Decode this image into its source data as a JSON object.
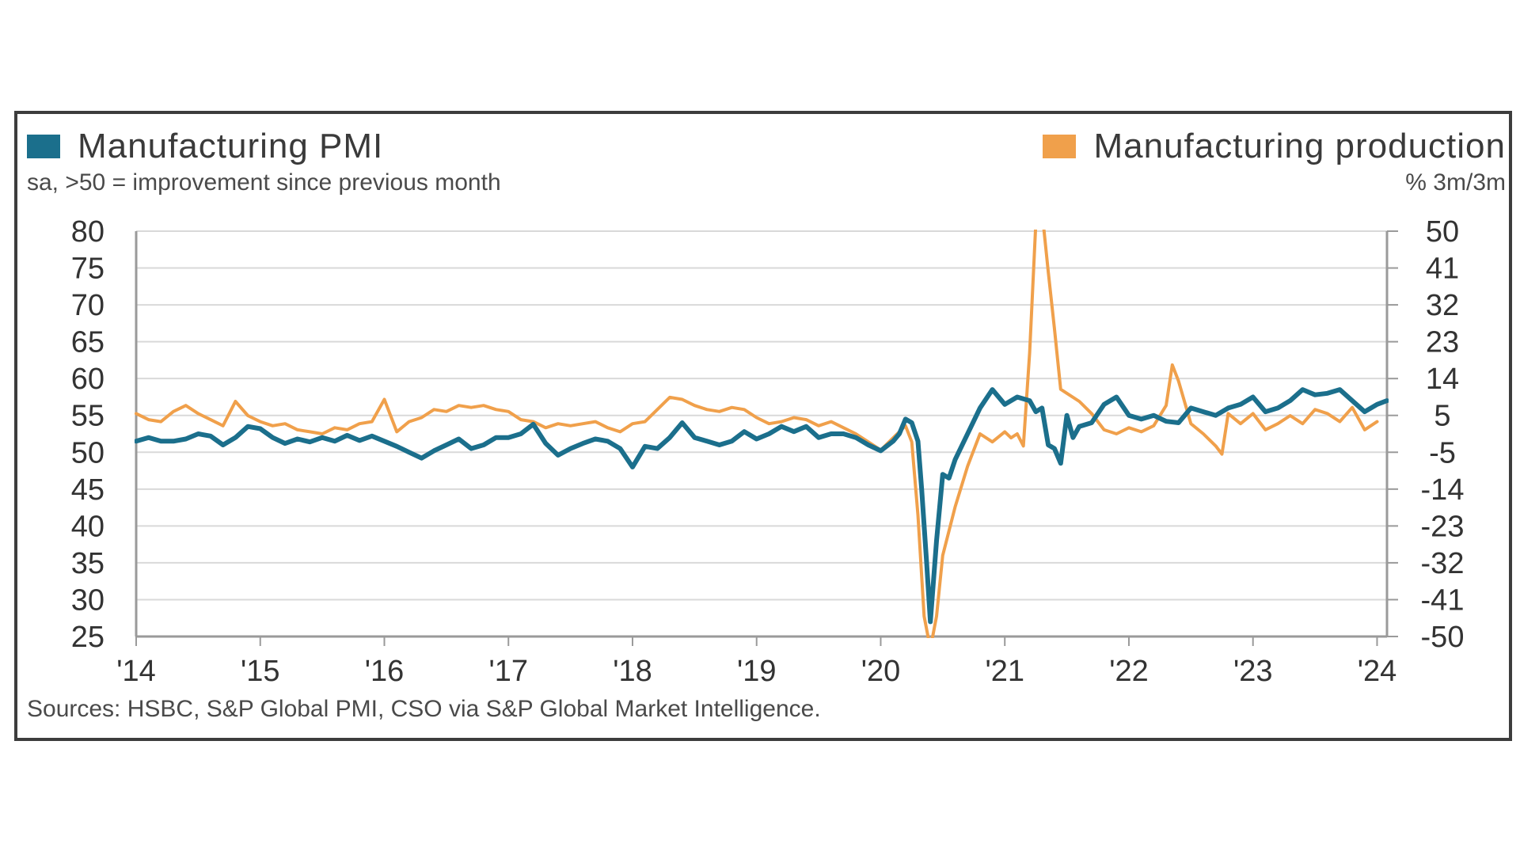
{
  "legend": {
    "left_label": "Manufacturing PMI",
    "right_label": "Manufacturing production",
    "left_color": "#1b6f8c",
    "right_color": "#f0a04b"
  },
  "subtitle_left": "sa, >50 = improvement since previous month",
  "subtitle_right": "% 3m/3m",
  "source": "Sources: HSBC, S&P Global PMI, CSO via S&P Global Market Intelligence.",
  "chart_data": {
    "type": "line",
    "x_tick_labels": [
      "'14",
      "'15",
      "'16",
      "'17",
      "'18",
      "'19",
      "'20",
      "'21",
      "'22",
      "'23",
      "'24"
    ],
    "y_left_ticks": [
      "80",
      "75",
      "70",
      "65",
      "60",
      "55",
      "50",
      "45",
      "40",
      "35",
      "30",
      "25"
    ],
    "y_right_ticks": [
      "50",
      "41",
      "32",
      "23",
      "14",
      "5",
      "-5",
      "-14",
      "-23",
      "-32",
      "-41",
      "-50"
    ],
    "y_left_range": [
      25,
      80
    ],
    "y_right_range": [
      -50,
      50
    ],
    "x_range": [
      2014.0,
      2024.08
    ],
    "grid": true,
    "series": [
      {
        "name": "Manufacturing PMI",
        "axis": "left",
        "color": "#1b6f8c",
        "points": [
          [
            2014.0,
            51.5
          ],
          [
            2014.1,
            52.0
          ],
          [
            2014.2,
            51.5
          ],
          [
            2014.3,
            51.5
          ],
          [
            2014.4,
            51.8
          ],
          [
            2014.5,
            52.5
          ],
          [
            2014.6,
            52.2
          ],
          [
            2014.7,
            51.0
          ],
          [
            2014.8,
            52.0
          ],
          [
            2014.9,
            53.5
          ],
          [
            2015.0,
            53.2
          ],
          [
            2015.1,
            52.0
          ],
          [
            2015.2,
            51.2
          ],
          [
            2015.3,
            51.8
          ],
          [
            2015.4,
            51.4
          ],
          [
            2015.5,
            52.0
          ],
          [
            2015.6,
            51.5
          ],
          [
            2015.7,
            52.3
          ],
          [
            2015.8,
            51.6
          ],
          [
            2015.9,
            52.2
          ],
          [
            2016.0,
            51.5
          ],
          [
            2016.1,
            50.8
          ],
          [
            2016.2,
            50.0
          ],
          [
            2016.3,
            49.2
          ],
          [
            2016.4,
            50.2
          ],
          [
            2016.5,
            51.0
          ],
          [
            2016.6,
            51.8
          ],
          [
            2016.7,
            50.5
          ],
          [
            2016.8,
            51.0
          ],
          [
            2016.9,
            52.0
          ],
          [
            2017.0,
            52.0
          ],
          [
            2017.1,
            52.5
          ],
          [
            2017.2,
            53.8
          ],
          [
            2017.3,
            51.2
          ],
          [
            2017.4,
            49.6
          ],
          [
            2017.5,
            50.5
          ],
          [
            2017.6,
            51.2
          ],
          [
            2017.7,
            51.8
          ],
          [
            2017.8,
            51.5
          ],
          [
            2017.9,
            50.5
          ],
          [
            2018.0,
            48.0
          ],
          [
            2018.1,
            50.8
          ],
          [
            2018.2,
            50.5
          ],
          [
            2018.3,
            52.0
          ],
          [
            2018.4,
            54.0
          ],
          [
            2018.5,
            52.0
          ],
          [
            2018.6,
            51.5
          ],
          [
            2018.7,
            51.0
          ],
          [
            2018.8,
            51.5
          ],
          [
            2018.9,
            52.8
          ],
          [
            2019.0,
            51.8
          ],
          [
            2019.1,
            52.5
          ],
          [
            2019.2,
            53.5
          ],
          [
            2019.3,
            52.8
          ],
          [
            2019.4,
            53.5
          ],
          [
            2019.5,
            52.0
          ],
          [
            2019.6,
            52.5
          ],
          [
            2019.7,
            52.5
          ],
          [
            2019.8,
            52.0
          ],
          [
            2019.9,
            51.0
          ],
          [
            2020.0,
            50.2
          ],
          [
            2020.1,
            51.5
          ],
          [
            2020.15,
            52.5
          ],
          [
            2020.2,
            54.5
          ],
          [
            2020.25,
            54.0
          ],
          [
            2020.3,
            51.5
          ],
          [
            2020.33,
            45.0
          ],
          [
            2020.37,
            35.0
          ],
          [
            2020.4,
            27.0
          ],
          [
            2020.45,
            38.0
          ],
          [
            2020.5,
            47.0
          ],
          [
            2020.55,
            46.5
          ],
          [
            2020.6,
            49.0
          ],
          [
            2020.7,
            52.5
          ],
          [
            2020.8,
            56.0
          ],
          [
            2020.9,
            58.5
          ],
          [
            2021.0,
            56.5
          ],
          [
            2021.1,
            57.5
          ],
          [
            2021.2,
            57.0
          ],
          [
            2021.25,
            55.5
          ],
          [
            2021.3,
            56.0
          ],
          [
            2021.35,
            51.0
          ],
          [
            2021.4,
            50.5
          ],
          [
            2021.45,
            48.5
          ],
          [
            2021.5,
            55.0
          ],
          [
            2021.55,
            52.0
          ],
          [
            2021.6,
            53.5
          ],
          [
            2021.7,
            54.0
          ],
          [
            2021.8,
            56.5
          ],
          [
            2021.9,
            57.5
          ],
          [
            2022.0,
            55.0
          ],
          [
            2022.1,
            54.5
          ],
          [
            2022.2,
            55.0
          ],
          [
            2022.3,
            54.2
          ],
          [
            2022.4,
            54.0
          ],
          [
            2022.5,
            56.0
          ],
          [
            2022.6,
            55.5
          ],
          [
            2022.7,
            55.0
          ],
          [
            2022.8,
            56.0
          ],
          [
            2022.9,
            56.5
          ],
          [
            2023.0,
            57.5
          ],
          [
            2023.1,
            55.5
          ],
          [
            2023.2,
            56.0
          ],
          [
            2023.3,
            57.0
          ],
          [
            2023.4,
            58.5
          ],
          [
            2023.5,
            57.8
          ],
          [
            2023.6,
            58.0
          ],
          [
            2023.7,
            58.5
          ],
          [
            2023.8,
            57.0
          ],
          [
            2023.9,
            55.5
          ],
          [
            2024.0,
            56.5
          ],
          [
            2024.08,
            57.0
          ]
        ]
      },
      {
        "name": "Manufacturing production",
        "axis": "right",
        "color": "#f0a04b",
        "points": [
          [
            2014.0,
            5.0
          ],
          [
            2014.1,
            3.5
          ],
          [
            2014.2,
            3.0
          ],
          [
            2014.3,
            5.5
          ],
          [
            2014.4,
            7.0
          ],
          [
            2014.5,
            5.0
          ],
          [
            2014.6,
            3.5
          ],
          [
            2014.7,
            2.0
          ],
          [
            2014.8,
            8.0
          ],
          [
            2014.9,
            4.5
          ],
          [
            2015.0,
            3.0
          ],
          [
            2015.1,
            2.0
          ],
          [
            2015.2,
            2.5
          ],
          [
            2015.3,
            1.0
          ],
          [
            2015.4,
            0.5
          ],
          [
            2015.5,
            0.0
          ],
          [
            2015.6,
            1.5
          ],
          [
            2015.7,
            1.0
          ],
          [
            2015.8,
            2.5
          ],
          [
            2015.9,
            3.0
          ],
          [
            2016.0,
            8.5
          ],
          [
            2016.1,
            0.5
          ],
          [
            2016.2,
            3.0
          ],
          [
            2016.3,
            4.0
          ],
          [
            2016.4,
            6.0
          ],
          [
            2016.5,
            5.5
          ],
          [
            2016.6,
            7.0
          ],
          [
            2016.7,
            6.5
          ],
          [
            2016.8,
            7.0
          ],
          [
            2016.9,
            6.0
          ],
          [
            2017.0,
            5.5
          ],
          [
            2017.1,
            3.5
          ],
          [
            2017.2,
            3.0
          ],
          [
            2017.3,
            1.5
          ],
          [
            2017.4,
            2.5
          ],
          [
            2017.5,
            2.0
          ],
          [
            2017.6,
            2.5
          ],
          [
            2017.7,
            3.0
          ],
          [
            2017.8,
            1.5
          ],
          [
            2017.9,
            0.5
          ],
          [
            2018.0,
            2.5
          ],
          [
            2018.1,
            3.0
          ],
          [
            2018.2,
            6.0
          ],
          [
            2018.3,
            9.0
          ],
          [
            2018.4,
            8.5
          ],
          [
            2018.5,
            7.0
          ],
          [
            2018.6,
            6.0
          ],
          [
            2018.7,
            5.5
          ],
          [
            2018.8,
            6.5
          ],
          [
            2018.9,
            6.0
          ],
          [
            2019.0,
            4.0
          ],
          [
            2019.1,
            2.5
          ],
          [
            2019.2,
            3.0
          ],
          [
            2019.3,
            4.0
          ],
          [
            2019.4,
            3.5
          ],
          [
            2019.5,
            2.0
          ],
          [
            2019.6,
            3.0
          ],
          [
            2019.7,
            1.5
          ],
          [
            2019.8,
            0.0
          ],
          [
            2019.9,
            -2.0
          ],
          [
            2020.0,
            -4.0
          ],
          [
            2020.1,
            -1.0
          ],
          [
            2020.2,
            2.0
          ],
          [
            2020.25,
            -2.0
          ],
          [
            2020.3,
            -20.0
          ],
          [
            2020.35,
            -45.0
          ],
          [
            2020.4,
            -53.0
          ],
          [
            2020.45,
            -45.0
          ],
          [
            2020.5,
            -30.0
          ],
          [
            2020.6,
            -18.0
          ],
          [
            2020.7,
            -8.0
          ],
          [
            2020.8,
            0.0
          ],
          [
            2020.9,
            -2.0
          ],
          [
            2021.0,
            0.5
          ],
          [
            2021.05,
            -1.0
          ],
          [
            2021.1,
            0.0
          ],
          [
            2021.15,
            -3.0
          ],
          [
            2021.2,
            20.0
          ],
          [
            2021.25,
            52.0
          ],
          [
            2021.3,
            55.0
          ],
          [
            2021.35,
            40.0
          ],
          [
            2021.4,
            26.0
          ],
          [
            2021.45,
            11.0
          ],
          [
            2021.5,
            10.0
          ],
          [
            2021.6,
            8.0
          ],
          [
            2021.7,
            5.0
          ],
          [
            2021.8,
            1.0
          ],
          [
            2021.9,
            0.0
          ],
          [
            2022.0,
            1.5
          ],
          [
            2022.1,
            0.5
          ],
          [
            2022.2,
            2.0
          ],
          [
            2022.3,
            7.0
          ],
          [
            2022.35,
            17.0
          ],
          [
            2022.4,
            13.0
          ],
          [
            2022.5,
            2.5
          ],
          [
            2022.6,
            0.0
          ],
          [
            2022.7,
            -3.0
          ],
          [
            2022.75,
            -5.0
          ],
          [
            2022.8,
            5.0
          ],
          [
            2022.9,
            2.5
          ],
          [
            2023.0,
            5.0
          ],
          [
            2023.1,
            1.0
          ],
          [
            2023.2,
            2.5
          ],
          [
            2023.3,
            4.5
          ],
          [
            2023.4,
            2.5
          ],
          [
            2023.5,
            6.0
          ],
          [
            2023.6,
            5.0
          ],
          [
            2023.7,
            3.0
          ],
          [
            2023.8,
            6.5
          ],
          [
            2023.9,
            1.0
          ],
          [
            2024.0,
            3.0
          ]
        ]
      }
    ]
  }
}
